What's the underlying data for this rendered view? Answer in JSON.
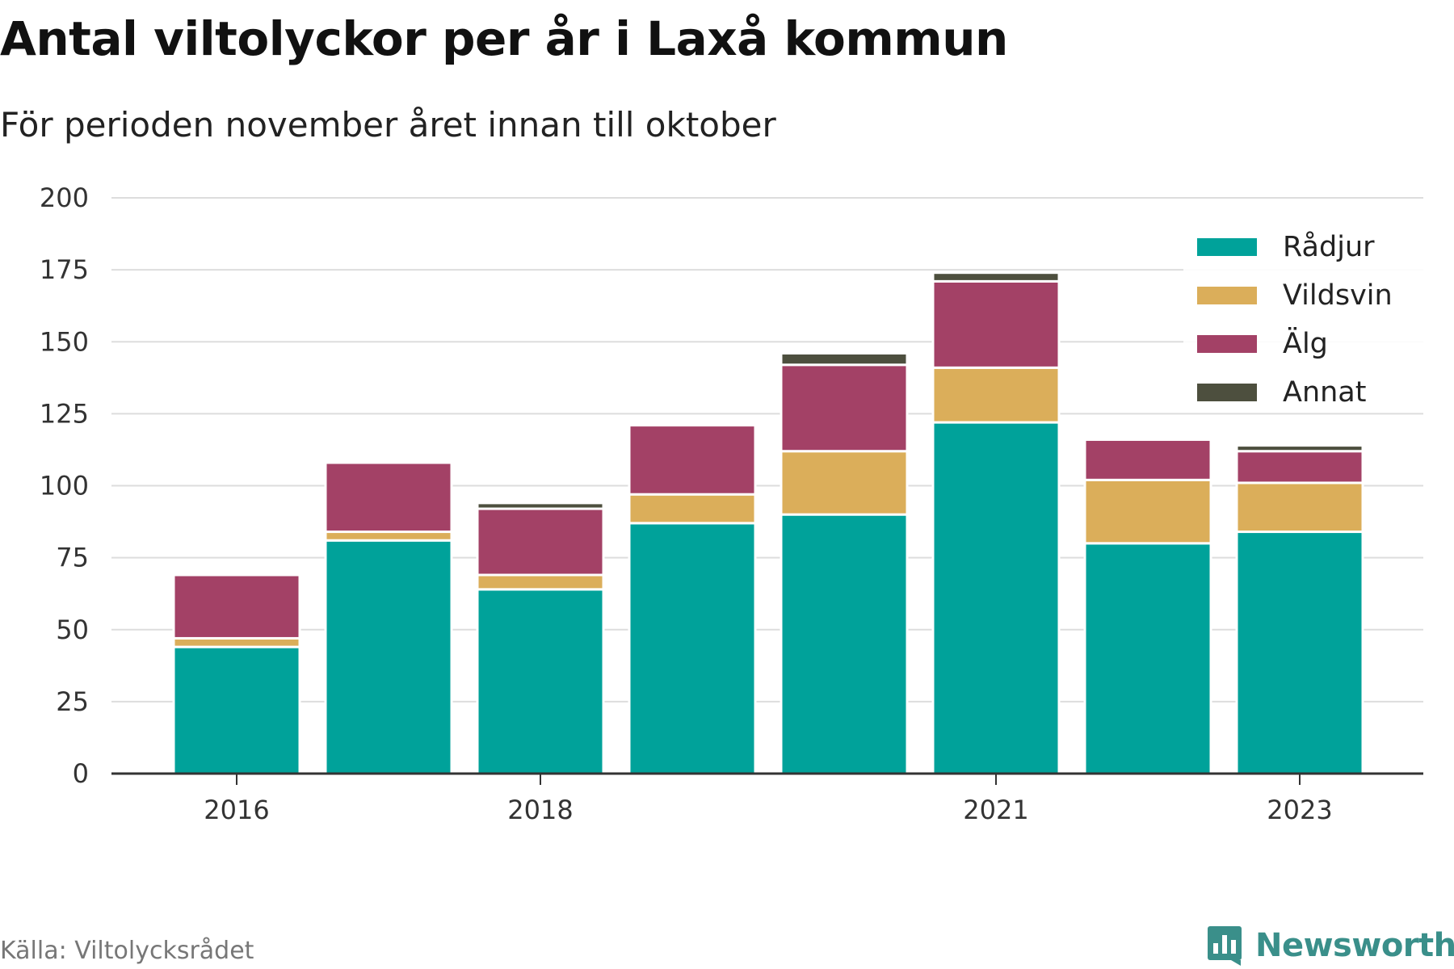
{
  "title": "Antal viltolyckor per år i Laxå kommun",
  "subtitle": "För perioden november året innan till oktober",
  "source": "Källa: Viltolycksrådet",
  "brand": "Newsworthy",
  "colors": {
    "Rådjur": "#00a29a",
    "Vildsvin": "#dbae5a",
    "Älg": "#a34166",
    "Annat": "#4d4f3e",
    "grid": "#dddddd",
    "axis": "#333333",
    "brand": "#3a8f8a"
  },
  "chart_data": {
    "type": "bar",
    "stacked": true,
    "title": "Antal viltolyckor per år i Laxå kommun",
    "subtitle": "För perioden november året innan till oktober",
    "categories": [
      "2016",
      "2017",
      "2018",
      "2019",
      "2020",
      "2021",
      "2022",
      "2023"
    ],
    "tick_labels": [
      "2016",
      "",
      "2018",
      "",
      "",
      "2021",
      "",
      "2023"
    ],
    "series": [
      {
        "name": "Rådjur",
        "values": [
          44,
          81,
          64,
          87,
          90,
          122,
          80,
          84
        ]
      },
      {
        "name": "Vildsvin",
        "values": [
          3,
          3,
          5,
          10,
          22,
          19,
          22,
          17
        ]
      },
      {
        "name": "Älg",
        "values": [
          22,
          24,
          23,
          24,
          30,
          30,
          14,
          11
        ]
      },
      {
        "name": "Annat",
        "values": [
          0,
          0,
          2,
          0,
          4,
          3,
          0,
          2
        ]
      }
    ],
    "ylim": [
      0,
      200
    ],
    "yticks": [
      0,
      25,
      50,
      75,
      100,
      125,
      150,
      175,
      200
    ],
    "xlabel": "",
    "ylabel": "",
    "grid": true,
    "legend": "top-right"
  }
}
